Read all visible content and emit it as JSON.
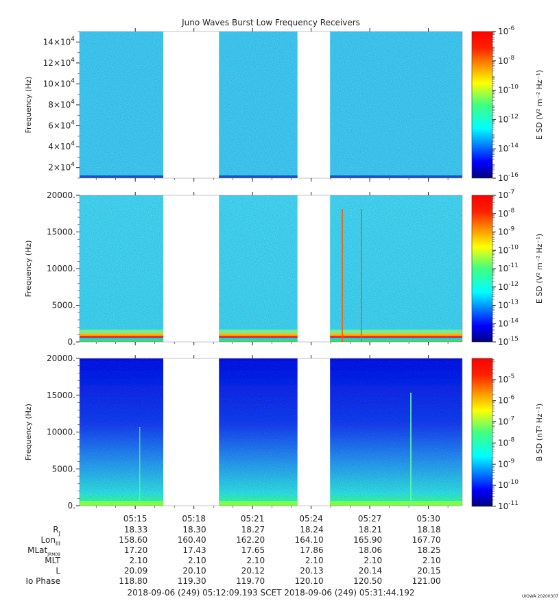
{
  "title": "Juno Waves Burst Low Frequency Receivers",
  "chart_data": [
    {
      "type": "heatmap",
      "panel": "top",
      "ylabel": "Frequency (Hz)",
      "ylim": [
        10000,
        150000
      ],
      "y_ticks": [
        {
          "mant": "2×10",
          "exp": "4",
          "value": 20000
        },
        {
          "mant": "4×10",
          "exp": "4",
          "value": 40000
        },
        {
          "mant": "6×10",
          "exp": "4",
          "value": 60000
        },
        {
          "mant": "8×10",
          "exp": "4",
          "value": 80000
        },
        {
          "mant": "10×10",
          "exp": "4",
          "value": 100000
        },
        {
          "mant": "12×10",
          "exp": "4",
          "value": 120000
        },
        {
          "mant": "14×10",
          "exp": "4",
          "value": 140000
        }
      ],
      "colorbar_label": "E SD (V² m⁻² Hz⁻¹)",
      "colorbar_scale": "log",
      "colorbar_range": [
        1e-16,
        1e-06
      ],
      "colorbar_ticks": [
        {
          "mant": "10",
          "exp": "-6",
          "value": 1e-06
        },
        {
          "mant": "10",
          "exp": "-8",
          "value": 1e-08
        },
        {
          "mant": "10",
          "exp": "-10",
          "value": 1e-10
        },
        {
          "mant": "10",
          "exp": "-12",
          "value": 1e-12
        },
        {
          "mant": "10",
          "exp": "-14",
          "value": 1e-14
        },
        {
          "mant": "10",
          "exp": "-16",
          "value": 1e-16
        }
      ],
      "data_segments": [
        [
          "05:12:09",
          "05:16:26"
        ],
        [
          "05:19:17",
          "05:23:18"
        ],
        [
          "05:24:58",
          "05:31:44"
        ]
      ],
      "intensity_note": "background ~1e-14 across band"
    },
    {
      "type": "heatmap",
      "panel": "middle",
      "ylabel": "Frequency (Hz)",
      "ylim": [
        0,
        20000
      ],
      "y_ticks": [
        {
          "text": "0.",
          "value": 0
        },
        {
          "text": "5000.",
          "value": 5000
        },
        {
          "text": "10000.",
          "value": 10000
        },
        {
          "text": "15000.",
          "value": 15000
        },
        {
          "text": "20000.",
          "value": 20000
        }
      ],
      "colorbar_label": "E SD (V² m⁻² Hz⁻¹)",
      "colorbar_scale": "log",
      "colorbar_range": [
        1e-15,
        1e-07
      ],
      "colorbar_ticks": [
        {
          "mant": "10",
          "exp": "-7",
          "value": 1e-07
        },
        {
          "mant": "10",
          "exp": "-8",
          "value": 1e-08
        },
        {
          "mant": "10",
          "exp": "-9",
          "value": 1e-09
        },
        {
          "mant": "10",
          "exp": "-10",
          "value": 1e-10
        },
        {
          "mant": "10",
          "exp": "-11",
          "value": 1e-11
        },
        {
          "mant": "10",
          "exp": "-12",
          "value": 1e-12
        },
        {
          "mant": "10",
          "exp": "-13",
          "value": 1e-13
        },
        {
          "mant": "10",
          "exp": "-14",
          "value": 1e-14
        },
        {
          "mant": "10",
          "exp": "-15",
          "value": 1e-15
        }
      ],
      "data_segments": [
        [
          "05:12:09",
          "05:16:26"
        ],
        [
          "05:19:17",
          "05:23:18"
        ],
        [
          "05:24:58",
          "05:31:44"
        ]
      ],
      "intensity_note": "strong emission band below ~1000 Hz; vertical spikes near 05:26 and 05:27"
    },
    {
      "type": "heatmap",
      "panel": "bottom",
      "ylabel": "Frequency (Hz)",
      "ylim": [
        0,
        20000
      ],
      "y_ticks": [
        {
          "text": "0.",
          "value": 0
        },
        {
          "text": "5000.",
          "value": 5000
        },
        {
          "text": "10000.",
          "value": 10000
        },
        {
          "text": "15000.",
          "value": 15000
        },
        {
          "text": "20000.",
          "value": 20000
        }
      ],
      "colorbar_label": "B SD (nT² Hz⁻¹)",
      "colorbar_scale": "log",
      "colorbar_range": [
        1e-11,
        0.0001
      ],
      "colorbar_ticks": [
        {
          "mant": "10",
          "exp": "-5",
          "value": 1e-05
        },
        {
          "mant": "10",
          "exp": "-6",
          "value": 1e-06
        },
        {
          "mant": "10",
          "exp": "-7",
          "value": 1e-07
        },
        {
          "mant": "10",
          "exp": "-8",
          "value": 1e-08
        },
        {
          "mant": "10",
          "exp": "-9",
          "value": 1e-09
        },
        {
          "mant": "10",
          "exp": "-10",
          "value": 1e-10
        },
        {
          "mant": "10",
          "exp": "-11",
          "value": 1e-11
        }
      ],
      "data_segments": [
        [
          "05:12:09",
          "05:16:26"
        ],
        [
          "05:19:17",
          "05:23:18"
        ],
        [
          "05:24:58",
          "05:31:44"
        ]
      ],
      "intensity_note": "intensity increases toward low frequency"
    }
  ],
  "x_axis": {
    "start": "05:12:09",
    "end": "05:31:44",
    "tick_labels": [
      "05:15",
      "05:18",
      "05:21",
      "05:24",
      "05:27",
      "05:30"
    ]
  },
  "ephemeris": {
    "rows": [
      {
        "label": "R",
        "sub": "J",
        "values": [
          "18.33",
          "18.30",
          "18.27",
          "18.24",
          "18.21",
          "18.18"
        ]
      },
      {
        "label": "Lon",
        "sub": "III",
        "values": [
          "158.60",
          "160.40",
          "162.20",
          "164.10",
          "165.90",
          "167.70"
        ]
      },
      {
        "label": "MLat",
        "sub": "JRM09",
        "values": [
          "17.20",
          "17.43",
          "17.65",
          "17.86",
          "18.06",
          "18.25"
        ]
      },
      {
        "label": "MLT",
        "sub": "",
        "values": [
          "2.10",
          "2.10",
          "2.10",
          "2.10",
          "2.10",
          "2.10"
        ]
      },
      {
        "label": "L",
        "sub": "",
        "values": [
          "20.09",
          "20.10",
          "20.12",
          "20.13",
          "20.14",
          "20.15"
        ]
      },
      {
        "label": "Io Phase",
        "sub": "",
        "values": [
          "118.80",
          "119.30",
          "119.70",
          "120.10",
          "120.50",
          "121.00"
        ]
      }
    ]
  },
  "footer": {
    "time_range": "2018-09-06 (249) 05:12:09.193    SCET    2018-09-06 (249) 05:31:44.192",
    "credit": "UIOWA 20200307"
  }
}
